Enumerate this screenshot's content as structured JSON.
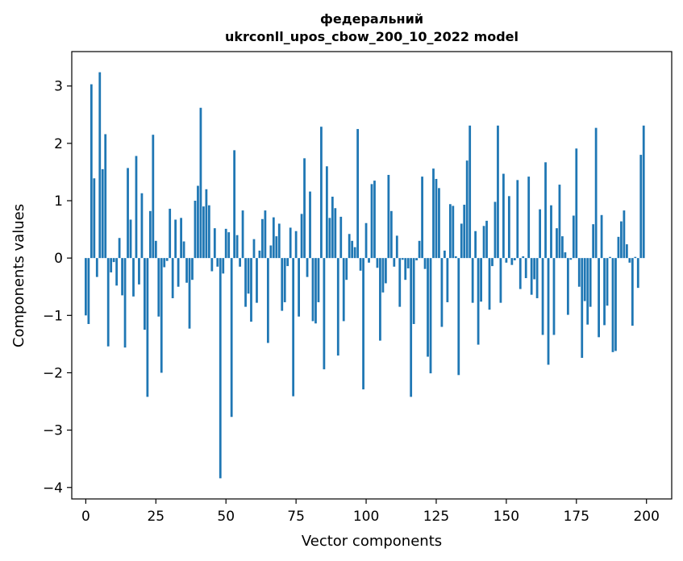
{
  "chart_data": {
    "type": "bar",
    "title_line1": "федеральний",
    "title_line2": "ukrconll_upos_cbow_200_10_2022 model",
    "xlabel": "Vector components",
    "ylabel": "Components values",
    "xlim": [
      -5,
      209
    ],
    "ylim": [
      -4.2,
      3.6
    ],
    "xticks": [
      0,
      25,
      50,
      75,
      100,
      125,
      150,
      175,
      200
    ],
    "yticks": [
      -4,
      -3,
      -2,
      -1,
      0,
      1,
      2,
      3
    ],
    "xtick_labels": [
      "0",
      "25",
      "50",
      "75",
      "100",
      "125",
      "150",
      "175",
      "200"
    ],
    "ytick_labels": [
      "−4",
      "−3",
      "−2",
      "−1",
      "0",
      "1",
      "2",
      "3"
    ],
    "bar_color": "#1f77b4",
    "values": [
      -1.0,
      -1.15,
      3.03,
      1.39,
      -0.33,
      3.24,
      1.55,
      2.16,
      -1.54,
      -0.25,
      -0.07,
      -0.48,
      0.35,
      -0.65,
      -1.56,
      1.57,
      0.67,
      -0.67,
      1.78,
      -0.46,
      1.13,
      -1.25,
      -2.42,
      0.82,
      2.15,
      0.3,
      -1.02,
      -2.0,
      -0.16,
      -0.05,
      0.86,
      -0.7,
      0.67,
      -0.5,
      0.7,
      0.29,
      -0.43,
      -1.23,
      -0.38,
      1.0,
      1.26,
      2.62,
      0.9,
      1.2,
      0.92,
      -0.23,
      0.52,
      -0.15,
      -3.84,
      -0.27,
      0.51,
      0.45,
      -2.77,
      1.88,
      0.4,
      -0.15,
      0.83,
      -0.85,
      -0.62,
      -1.11,
      0.33,
      -0.78,
      0.13,
      0.68,
      0.83,
      -1.48,
      0.22,
      0.71,
      0.38,
      0.6,
      -0.92,
      -0.77,
      -0.14,
      0.53,
      -2.41,
      0.47,
      -1.02,
      0.77,
      1.74,
      -0.33,
      1.16,
      -1.1,
      -1.14,
      -0.77,
      2.29,
      -1.94,
      1.6,
      0.7,
      1.07,
      0.87,
      -1.7,
      0.72,
      -1.1,
      -0.38,
      0.42,
      0.3,
      0.19,
      2.25,
      -0.22,
      -2.29,
      0.61,
      -0.08,
      1.29,
      1.35,
      -0.17,
      -1.44,
      -0.6,
      -0.44,
      1.45,
      0.82,
      -0.15,
      0.39,
      -0.85,
      -0.03,
      -0.38,
      -0.18,
      -2.42,
      -1.15,
      -0.04,
      0.3,
      1.42,
      -0.19,
      -1.72,
      -2.01,
      1.56,
      1.38,
      1.22,
      -1.2,
      0.13,
      -0.77,
      0.94,
      0.91,
      0.03,
      -2.04,
      0.6,
      0.93,
      1.7,
      2.31,
      -0.78,
      0.47,
      -1.51,
      -0.76,
      0.56,
      0.65,
      -0.9,
      -0.14,
      0.98,
      2.31,
      -0.78,
      1.47,
      -0.08,
      1.08,
      -0.12,
      -0.04,
      1.36,
      -0.54,
      0.03,
      -0.35,
      1.42,
      -0.64,
      -0.37,
      -0.7,
      0.85,
      -1.34,
      1.67,
      -1.86,
      0.92,
      -1.34,
      0.52,
      1.28,
      0.38,
      0.1,
      -0.99,
      -0.03,
      0.74,
      1.91,
      -0.5,
      -1.74,
      -0.75,
      -1.16,
      -0.85,
      0.59,
      2.27,
      -1.38,
      0.75,
      -1.17,
      -0.83,
      0.02,
      -1.64,
      -1.62,
      0.37,
      0.64,
      0.83,
      0.24,
      -0.08,
      -1.18,
      0.02,
      -0.52,
      1.8,
      2.31
    ]
  }
}
